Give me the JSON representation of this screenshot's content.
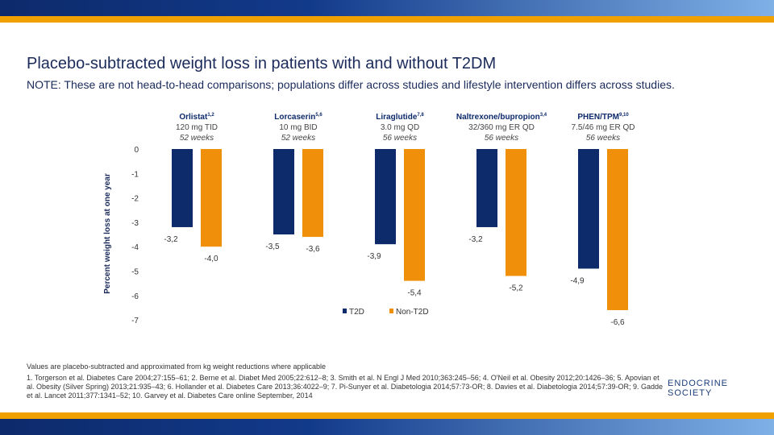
{
  "title": "Placebo-subtracted weight loss in patients with and without T2DM",
  "note": "NOTE:  These are not head-to-head comparisons; populations differ across studies and lifestyle intervention differs across studies.",
  "chart_data": {
    "type": "bar",
    "ylabel": "Percent weight loss at one year",
    "ylim": [
      -7,
      0
    ],
    "yticks": [
      "0",
      "-1",
      "-2",
      "-3",
      "-4",
      "-5",
      "-6",
      "-7"
    ],
    "grid": false,
    "legend_position": "bottom",
    "categories": [
      {
        "name": "Orlistat",
        "sup": "1,2",
        "dose": "120 mg TID",
        "duration": "52 weeks"
      },
      {
        "name": "Lorcaserin",
        "sup": "5,6",
        "dose": "10 mg BID",
        "duration": "52 weeks"
      },
      {
        "name": "Liraglutide",
        "sup": "7,8",
        "dose": "3.0 mg QD",
        "duration": "56 weeks"
      },
      {
        "name": "Naltrexone/bupropion",
        "sup": "3,4",
        "dose": "32/360 mg ER QD",
        "duration": "56 weeks"
      },
      {
        "name": "PHEN/TPM",
        "sup": "9,10",
        "dose": "7.5/46 mg ER QD",
        "duration": "56 weeks"
      }
    ],
    "series": [
      {
        "name": "T2D",
        "color": "#0d2a6b",
        "values": [
          -3.2,
          -3.5,
          -3.9,
          -3.2,
          -4.9
        ],
        "labels": [
          "-3,2",
          "-3,5",
          "-3,9",
          "-3,2",
          "-4,9"
        ]
      },
      {
        "name": "Non-T2D",
        "color": "#f0900a",
        "values": [
          -4.0,
          -3.6,
          -5.4,
          -5.2,
          -6.6
        ],
        "labels": [
          "-4,0",
          "-3,6",
          "-5,4",
          "-5,2",
          "-6,6"
        ]
      }
    ]
  },
  "footnote": "Values are placebo-subtracted and approximated from kg weight reductions where applicable",
  "references": "1. Torgerson et al. Diabetes Care 2004;27:155–61; 2. Berne et al. Diabet Med 2005;22:612–8; 3. Smith et al. N Engl J Med 2010;363:245–56; 4. O'Neil et al. Obesity 2012;20:1426–36; 5. Apovian et al. Obesity (Silver Spring) 2013;21:935–43; 6. Hollander et al. Diabetes Care 2013;36:4022–9; 7. Pi-Sunyer et al. Diabetologia 2014;57:73-OR; 8. Davies et al. Diabetologia 2014;57:39-OR; 9. Gadde et al. Lancet 2011;377:1341–52; 10. Garvey et al. Diabetes Care online September, 2014",
  "logo": "ENDOCRINE SOCIETY"
}
